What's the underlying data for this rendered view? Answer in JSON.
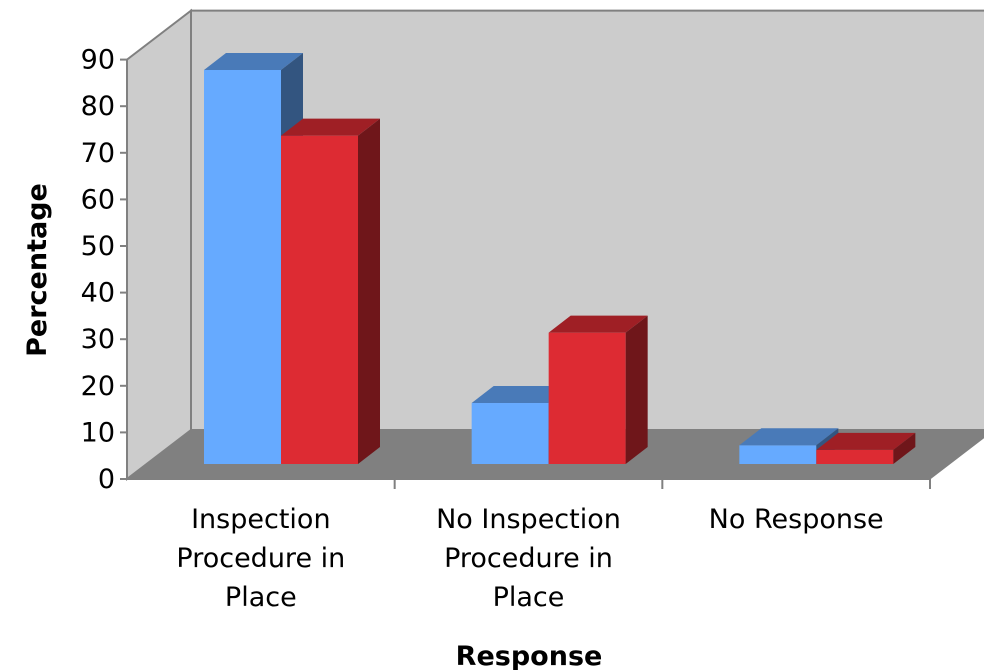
{
  "chart_data": {
    "type": "bar",
    "style": "3d-clustered-column",
    "categories": [
      [
        "Inspection",
        "Procedure in",
        "Place"
      ],
      [
        "No Inspection",
        "Procedure in",
        "Place"
      ],
      [
        "No Response"
      ]
    ],
    "series": [
      {
        "values": [
          84,
          13,
          4
        ],
        "color": "#66aaff"
      },
      {
        "values": [
          70,
          28,
          3
        ],
        "color": "#dd2b33"
      }
    ],
    "ylabel": "Percentage",
    "xlabel": "Response",
    "ylim": [
      0,
      90
    ],
    "yticks": [
      0,
      10,
      20,
      30,
      40,
      50,
      60,
      70,
      80,
      90
    ],
    "wall_color": "#cccccc",
    "floor_color": "#808080",
    "legend": "none"
  }
}
